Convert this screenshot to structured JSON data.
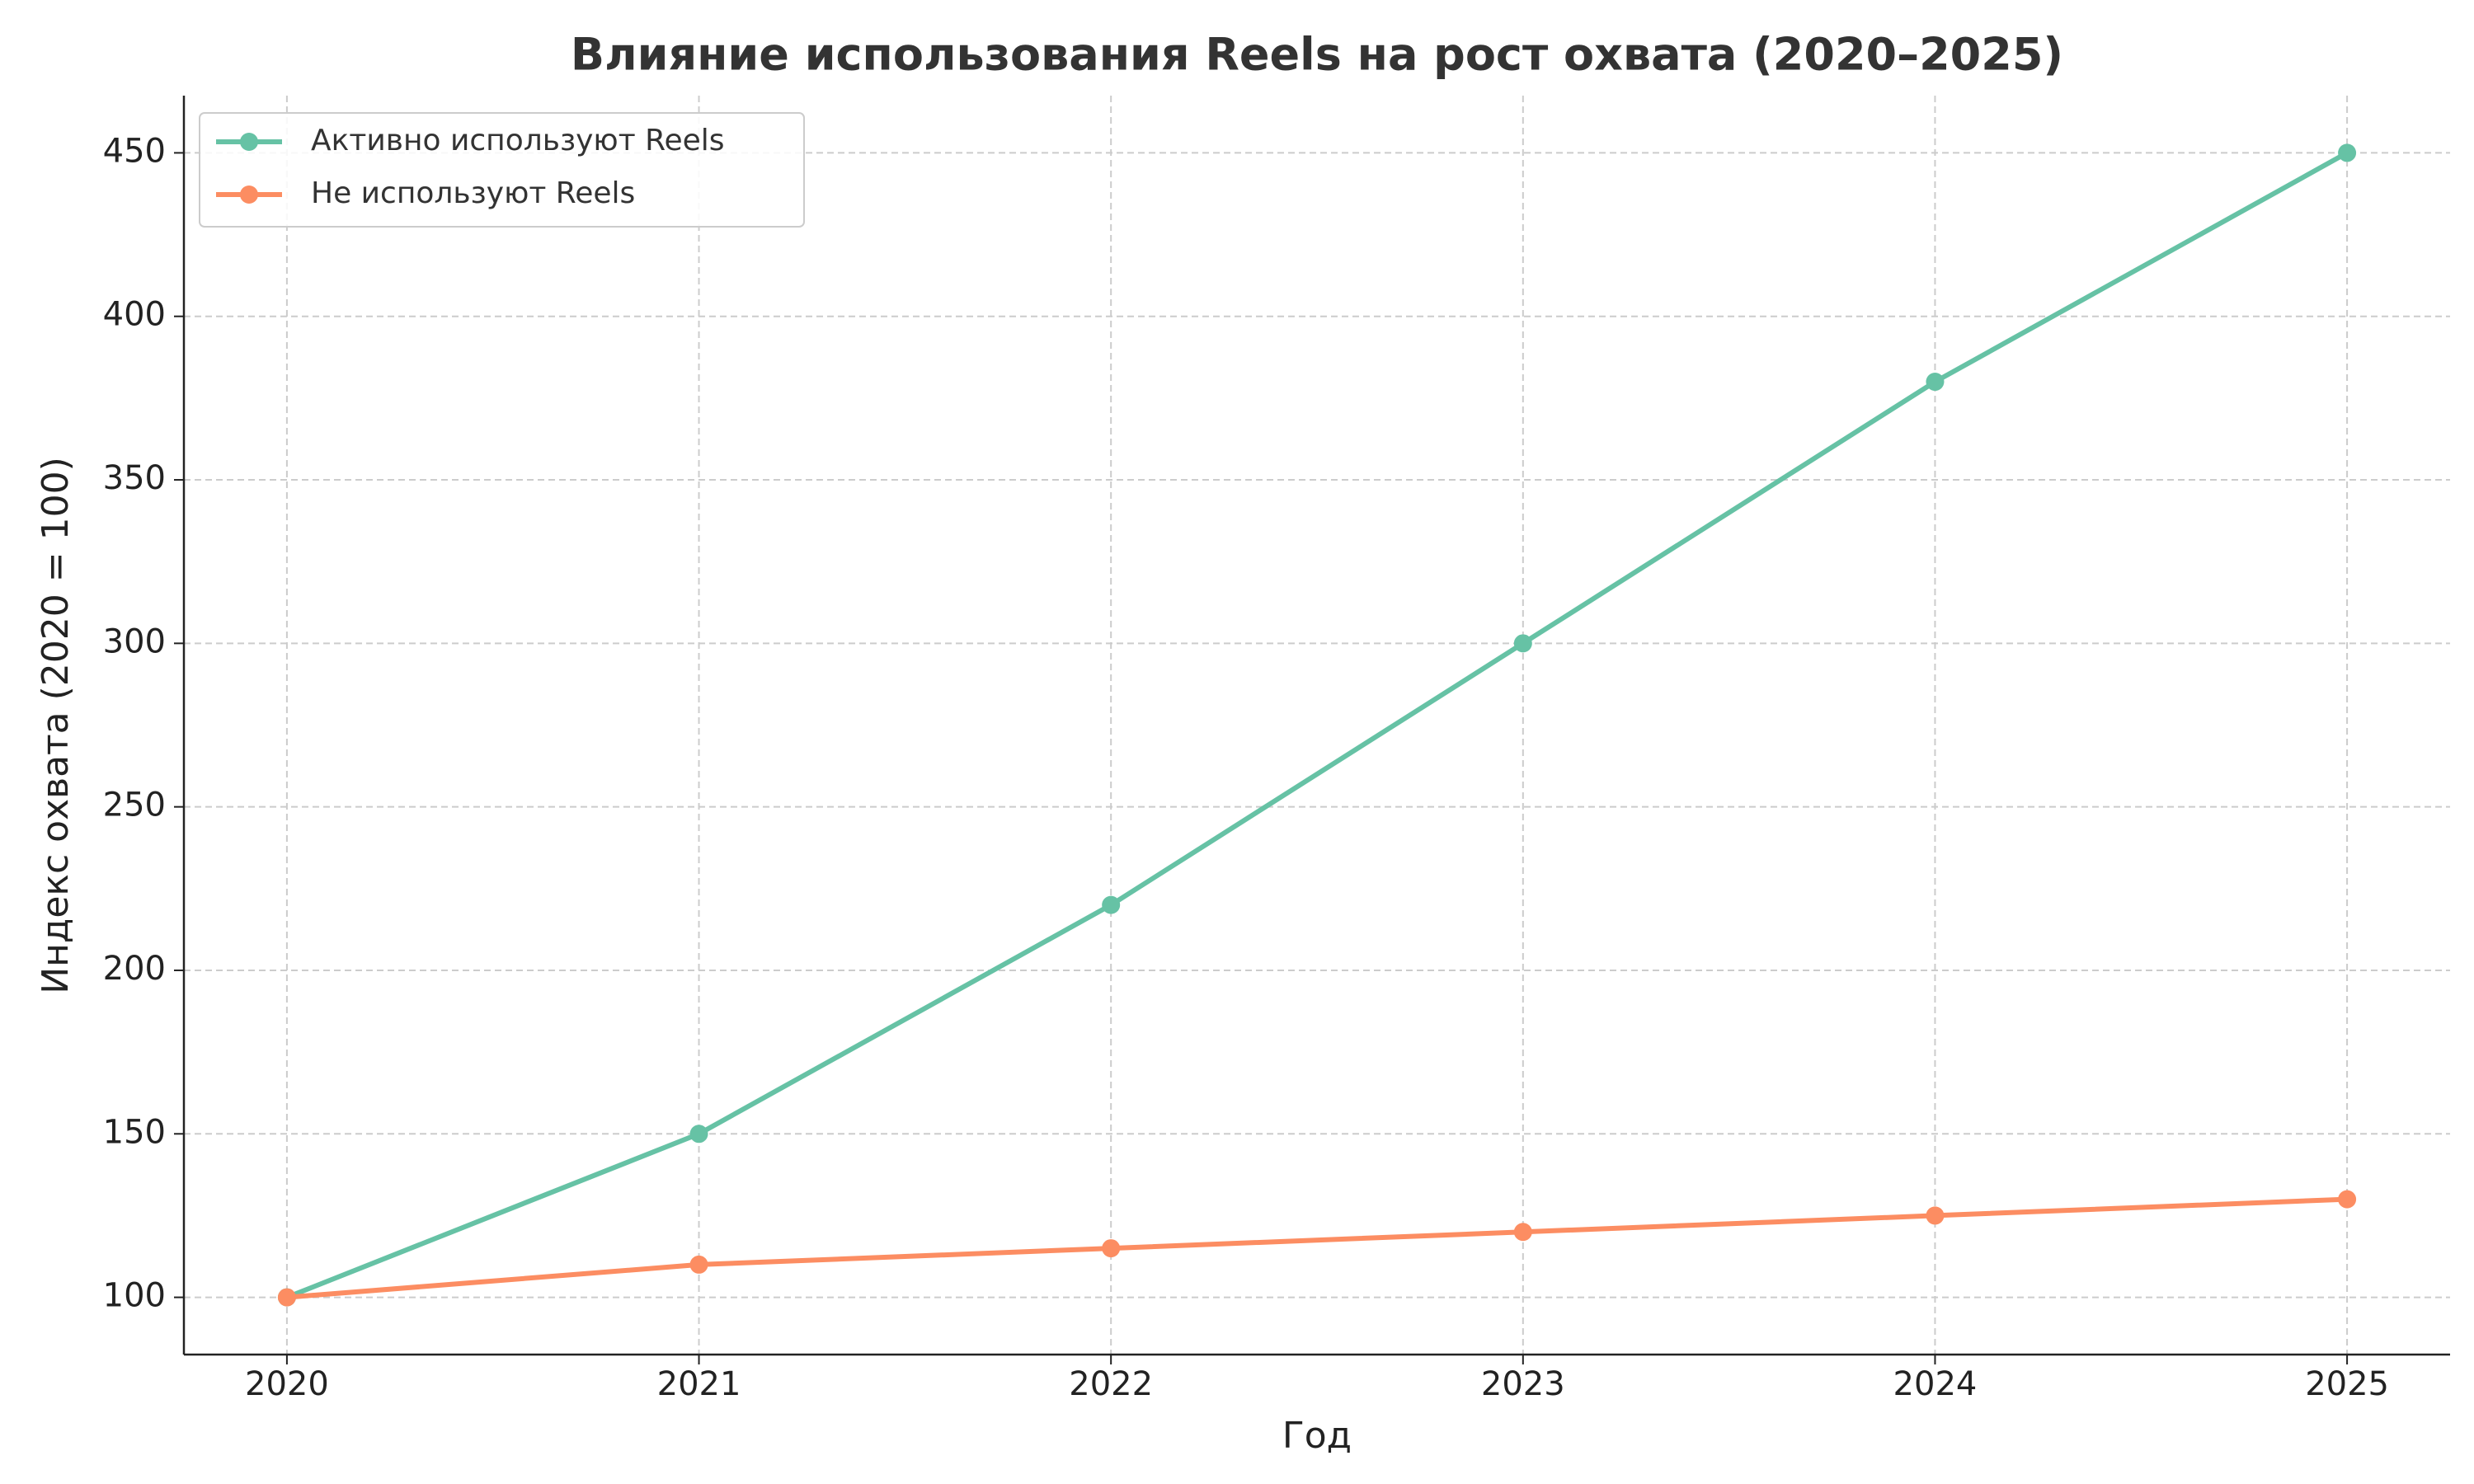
{
  "chart_data": {
    "type": "line",
    "title": "Влияние использования Reels на рост охвата (2020–2025)",
    "x_label": "Год",
    "y_label": "Индекс охвата (2020 = 100)",
    "x": [
      2020,
      2021,
      2022,
      2023,
      2024,
      2025
    ],
    "series": [
      {
        "name": "Активно используют Reels",
        "color": "#66c2a5",
        "values": [
          100,
          150,
          220,
          300,
          380,
          450
        ]
      },
      {
        "name": "Не используют Reels",
        "color": "#fc8d62",
        "values": [
          100,
          110,
          115,
          120,
          125,
          130
        ]
      }
    ],
    "xlim": [
      2019.75,
      2025.25
    ],
    "xticks": [
      2020,
      2021,
      2022,
      2023,
      2024,
      2025
    ],
    "ylim": [
      82.5,
      467.5
    ],
    "yticks": [
      100,
      150,
      200,
      250,
      300,
      350,
      400,
      450
    ],
    "grid": true,
    "legend": "upper left",
    "markers": true
  }
}
